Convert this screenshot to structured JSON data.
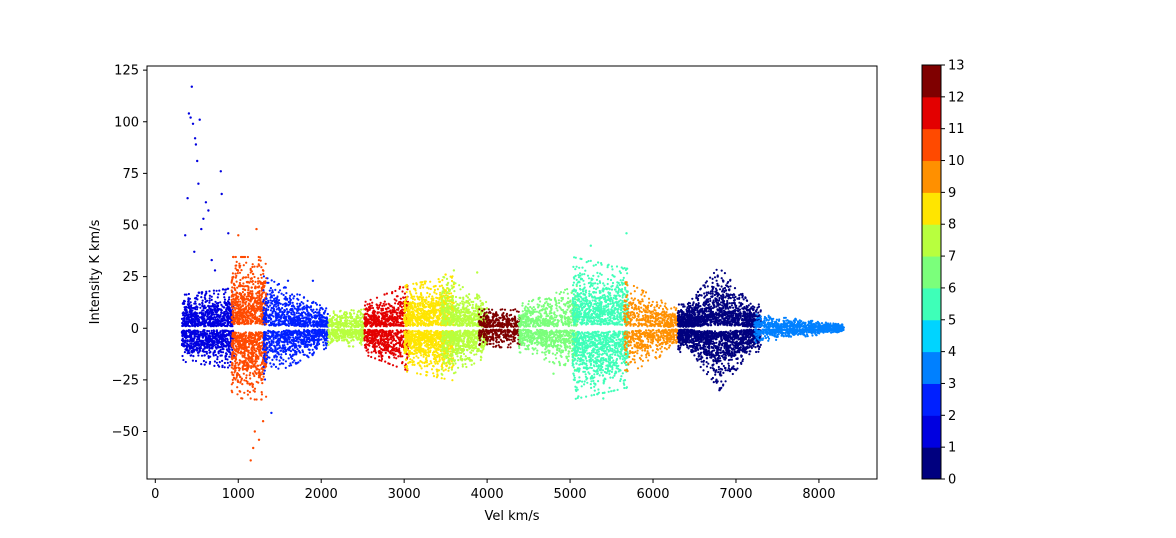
{
  "chart_data": {
    "type": "scatter",
    "title": "",
    "xlabel": "Vel km/s",
    "ylabel": "Intensity K km/s",
    "xlim": [
      -100,
      8700
    ],
    "ylim": [
      -73,
      127
    ],
    "xticks": [
      0,
      1000,
      2000,
      3000,
      4000,
      5000,
      6000,
      7000,
      8000
    ],
    "yticks": [
      -50,
      -25,
      0,
      25,
      50,
      75,
      100,
      125
    ],
    "grid": false,
    "legend": "none",
    "colorbar": {
      "ticks": [
        0,
        1,
        2,
        3,
        4,
        5,
        6,
        7,
        8,
        9,
        10,
        11,
        12,
        13
      ],
      "colors": [
        "#00007f",
        "#0000e0",
        "#0020ff",
        "#0080ff",
        "#00d4ff",
        "#3effb8",
        "#7bff7b",
        "#b8ff3e",
        "#ffe500",
        "#ff9000",
        "#ff4a00",
        "#e30000",
        "#7f0000"
      ]
    },
    "clusters": [
      {
        "label": 1,
        "xrange": [
          320,
          950
        ],
        "amp_at_start": 14,
        "amp_at_end": 17,
        "count": 1300,
        "outliers": [
          [
            360,
            45
          ],
          [
            390,
            63
          ],
          [
            405,
            104
          ],
          [
            425,
            102
          ],
          [
            440,
            117
          ],
          [
            455,
            99
          ],
          [
            470,
            37
          ],
          [
            480,
            92
          ],
          [
            490,
            89
          ],
          [
            505,
            81
          ],
          [
            520,
            70
          ],
          [
            535,
            101
          ],
          [
            555,
            48
          ],
          [
            580,
            53
          ],
          [
            610,
            61
          ],
          [
            640,
            57
          ],
          [
            680,
            33
          ],
          [
            720,
            28
          ],
          [
            790,
            76
          ],
          [
            800,
            65
          ],
          [
            880,
            46
          ]
        ]
      },
      {
        "label": 10,
        "xrange": [
          920,
          1340
        ],
        "amp_at_start": 30,
        "amp_at_end": 30,
        "count": 1300,
        "outliers": [
          [
            1150,
            -64
          ],
          [
            1200,
            -50
          ],
          [
            1250,
            -54
          ],
          [
            1220,
            48
          ],
          [
            1000,
            45
          ],
          [
            1300,
            -45
          ],
          [
            1180,
            -58
          ]
        ]
      },
      {
        "label": 2,
        "xrange": [
          1300,
          2080
        ],
        "amp_at_start": 22,
        "amp_at_end": 8,
        "count": 1300,
        "outliers": [
          [
            1400,
            -41
          ],
          [
            1900,
            23
          ],
          [
            1600,
            23
          ]
        ]
      },
      {
        "label": 7,
        "xrange": [
          2080,
          2520
        ],
        "amp_at_start": 7,
        "amp_at_end": 8,
        "count": 500,
        "outliers": []
      },
      {
        "label": 11,
        "xrange": [
          2520,
          3050
        ],
        "amp_at_start": 11,
        "amp_at_end": 18,
        "count": 900,
        "outliers": [
          [
            2950,
            20
          ]
        ]
      },
      {
        "label": 8,
        "xrange": [
          3000,
          3600
        ],
        "amp_at_start": 18,
        "amp_at_end": 22,
        "count": 1500,
        "outliers": [
          [
            3500,
            26
          ],
          [
            3400,
            -21
          ]
        ]
      },
      {
        "label": 7,
        "xrange": [
          3450,
          4000
        ],
        "amp_at_start": 22,
        "amp_at_end": 12,
        "count": 1100,
        "outliers": [
          [
            3600,
            28
          ],
          [
            3880,
            27
          ]
        ]
      },
      {
        "label": 12,
        "xrange": [
          3900,
          4400
        ],
        "amp_at_start": 8,
        "amp_at_end": 8,
        "count": 500,
        "outliers": []
      },
      {
        "label": 6,
        "xrange": [
          4380,
          5100
        ],
        "amp_at_start": 10,
        "amp_at_end": 18,
        "count": 1000,
        "outliers": [
          [
            4800,
            -22
          ]
        ]
      },
      {
        "label": 5,
        "xrange": [
          5030,
          5700
        ],
        "amp_at_start": 30,
        "amp_at_end": 25,
        "count": 1600,
        "outliers": [
          [
            5250,
            40
          ],
          [
            5400,
            -34
          ],
          [
            5680,
            46
          ],
          [
            5100,
            -33
          ]
        ]
      },
      {
        "label": 9,
        "xrange": [
          5650,
          6300
        ],
        "amp_at_start": 20,
        "amp_at_end": 8,
        "count": 800,
        "outliers": []
      },
      {
        "label": 0,
        "xrange": [
          6300,
          7300
        ],
        "amp_at_start": 10,
        "amp_at_end": 8,
        "peak_x": 6800,
        "peak_amp": 26,
        "count": 2600,
        "outliers": [
          [
            6800,
            -30
          ],
          [
            6780,
            25
          ]
        ]
      },
      {
        "label": 3,
        "xrange": [
          7220,
          8300
        ],
        "amp_at_start": 6,
        "amp_at_end": 1.5,
        "count": 900,
        "outliers": []
      }
    ]
  }
}
